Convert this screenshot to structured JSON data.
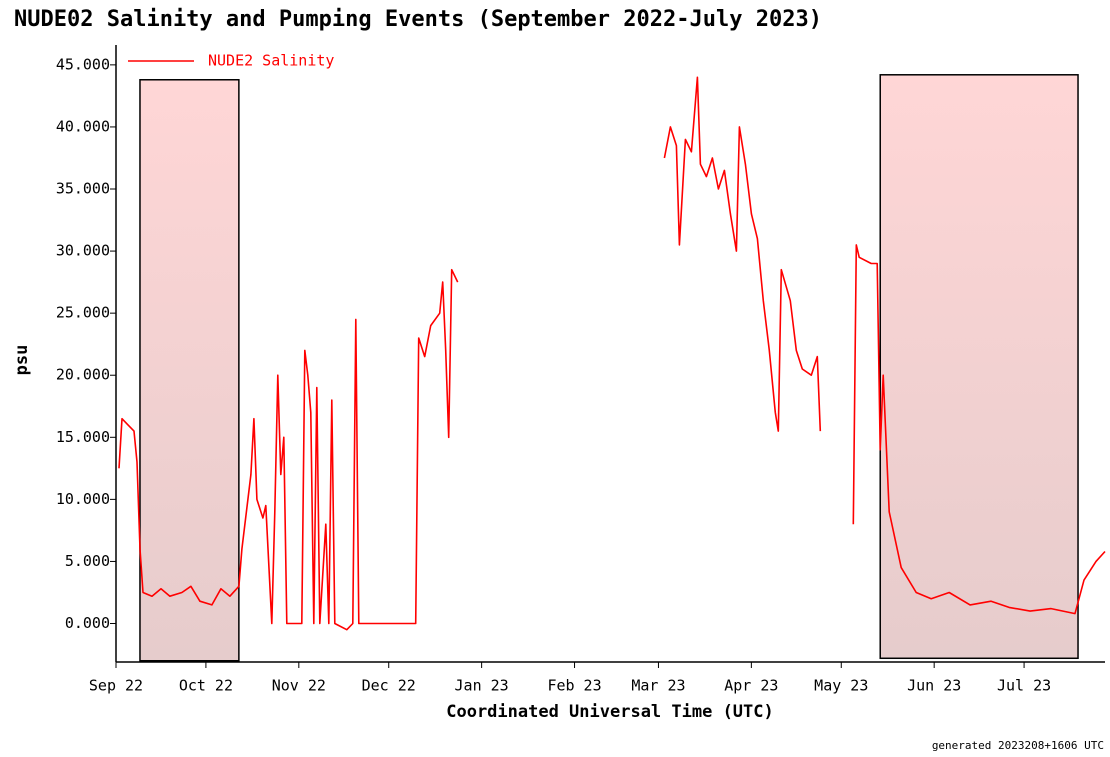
{
  "chart_data": {
    "type": "line",
    "title": "NUDE02 Salinity and Pumping Events (September 2022-July 2023)",
    "x_label": "Coordinated Universal Time (UTC)",
    "y_label": "psu",
    "footer": "generated 2023208+1606 UTC",
    "legend": "top-left",
    "grid": false,
    "xlim": [
      "2022-09-01",
      "2023-07-28"
    ],
    "ylim": [
      -3.1,
      46.6
    ],
    "xticks": [
      {
        "value": "2022-09-01",
        "label": "Sep 22"
      },
      {
        "value": "2022-10-01",
        "label": "Oct 22"
      },
      {
        "value": "2022-11-01",
        "label": "Nov 22"
      },
      {
        "value": "2022-12-01",
        "label": "Dec 22"
      },
      {
        "value": "2023-01-01",
        "label": "Jan 23"
      },
      {
        "value": "2023-02-01",
        "label": "Feb 23"
      },
      {
        "value": "2023-03-01",
        "label": "Mar 23"
      },
      {
        "value": "2023-04-01",
        "label": "Apr 23"
      },
      {
        "value": "2023-05-01",
        "label": "May 23"
      },
      {
        "value": "2023-06-01",
        "label": "Jun 23"
      },
      {
        "value": "2023-07-01",
        "label": "Jul 23"
      }
    ],
    "yticks": [
      {
        "value": 0,
        "label": "0.000"
      },
      {
        "value": 5,
        "label": "5.000"
      },
      {
        "value": 10,
        "label": "10.000"
      },
      {
        "value": 15,
        "label": "15.000"
      },
      {
        "value": 20,
        "label": "20.000"
      },
      {
        "value": 25,
        "label": "25.000"
      },
      {
        "value": 30,
        "label": "30.000"
      },
      {
        "value": 35,
        "label": "35.000"
      },
      {
        "value": 40,
        "label": "40.000"
      },
      {
        "value": 45,
        "label": "45.000"
      }
    ],
    "regions": [
      {
        "start": "2022-09-09",
        "end": "2022-10-12",
        "ymin": -3.0,
        "ymax": 43.8,
        "color": "#ffd4d4"
      },
      {
        "start": "2023-05-14",
        "end": "2023-07-19",
        "ymin": -2.8,
        "ymax": 44.2,
        "color": "#ffd4d4"
      }
    ],
    "x": [
      "2022-09-02",
      "2022-09-03",
      "2022-09-05",
      "2022-09-07",
      "2022-09-08",
      "2022-09-09",
      "2022-09-10",
      "2022-09-13",
      "2022-09-16",
      "2022-09-19",
      "2022-09-23",
      "2022-09-26",
      "2022-09-29",
      "2022-10-03",
      "2022-10-06",
      "2022-10-09",
      "2022-10-12",
      "2022-10-13",
      "2022-10-15",
      "2022-10-16",
      "2022-10-17",
      "2022-10-18",
      "2022-10-20",
      "2022-10-21",
      "2022-10-23",
      "2022-10-24",
      "2022-10-25",
      "2022-10-26",
      "2022-10-27",
      "2022-10-28",
      "2022-11-02",
      "2022-11-03",
      "2022-11-04",
      "2022-11-05",
      "2022-11-06",
      "2022-11-07",
      "2022-11-08",
      "2022-11-10",
      "2022-11-11",
      "2022-11-12",
      "2022-11-13",
      "2022-11-17",
      "2022-11-19",
      "2022-11-20",
      "2022-11-21",
      "2022-12-10",
      "2022-12-11",
      "2022-12-13",
      "2022-12-15",
      "2022-12-18",
      "2022-12-19",
      "2022-12-20",
      "2022-12-21",
      "2022-12-22",
      "2022-12-24",
      "2023-02-01",
      "2023-03-03",
      "2023-03-05",
      "2023-03-07",
      "2023-03-08",
      "2023-03-10",
      "2023-03-12",
      "2023-03-14",
      "2023-03-15",
      "2023-03-17",
      "2023-03-19",
      "2023-03-21",
      "2023-03-23",
      "2023-03-25",
      "2023-03-27",
      "2023-03-28",
      "2023-03-30",
      "2023-04-01",
      "2023-04-03",
      "2023-04-05",
      "2023-04-07",
      "2023-04-09",
      "2023-04-10",
      "2023-04-11",
      "2023-04-14",
      "2023-04-16",
      "2023-04-18",
      "2023-04-21",
      "2023-04-23",
      "2023-04-24",
      "2023-04-30",
      "2023-05-05",
      "2023-05-06",
      "2023-05-07",
      "2023-05-11",
      "2023-05-13",
      "2023-05-14",
      "2023-05-15",
      "2023-05-17",
      "2023-05-21",
      "2023-05-26",
      "2023-05-31",
      "2023-06-06",
      "2023-06-13",
      "2023-06-20",
      "2023-06-26",
      "2023-07-03",
      "2023-07-10",
      "2023-07-18",
      "2023-07-21",
      "2023-07-25",
      "2023-07-28"
    ],
    "series": [
      {
        "name": "NUDE2 Salinity",
        "color": "#ff0000",
        "values": [
          12.5,
          16.5,
          16,
          15.5,
          13,
          6,
          2.5,
          2.2,
          2.8,
          2.2,
          2.5,
          3.0,
          1.8,
          1.5,
          2.8,
          2.2,
          3.0,
          6,
          10,
          12,
          16.5,
          10,
          8.5,
          9.5,
          0,
          9,
          20,
          12,
          15,
          0,
          0,
          22,
          20,
          17,
          0,
          19,
          0,
          8,
          0,
          18,
          0,
          -0.5,
          0,
          24.5,
          0,
          0,
          23,
          21.5,
          24,
          25,
          27.5,
          22,
          15,
          28.5,
          27.5,
          null,
          37.5,
          40,
          38.5,
          30.5,
          39,
          38,
          44,
          37,
          36,
          37.5,
          35,
          36.5,
          33,
          30,
          40,
          37,
          33,
          31,
          26,
          22,
          17,
          15.5,
          28.5,
          26,
          22,
          20.5,
          20,
          21.5,
          15.5,
          null,
          8,
          30.5,
          29.5,
          29,
          29,
          14,
          20,
          9,
          4.5,
          2.5,
          2,
          2.5,
          1.5,
          1.8,
          1.3,
          1.0,
          1.2,
          0.8,
          3.5,
          5,
          5.8
        ]
      }
    ]
  }
}
